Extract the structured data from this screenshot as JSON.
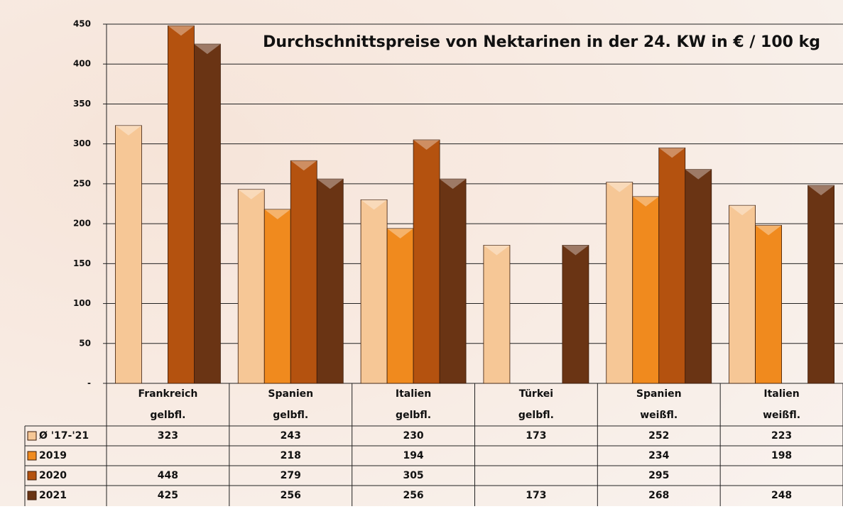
{
  "chart_data": {
    "type": "bar",
    "title": "Durchschnittspreise von Nektarinen in der 24. KW in € / 100 kg",
    "categories": [
      [
        "Frankreich",
        "gelbfl."
      ],
      [
        "Spanien",
        "gelbfl."
      ],
      [
        "Italien",
        "gelbfl."
      ],
      [
        "Türkei",
        "gelbfl."
      ],
      [
        "Spanien",
        "weißfl."
      ],
      [
        "Italien",
        "weißfl."
      ]
    ],
    "series": [
      {
        "name": "Ø '17-'21",
        "color": "#f6c796",
        "values": [
          323,
          243,
          230,
          173,
          252,
          223
        ]
      },
      {
        "name": "2019",
        "color": "#f08a1e",
        "values": [
          null,
          218,
          194,
          null,
          234,
          198
        ]
      },
      {
        "name": "2020",
        "color": "#b4520f",
        "values": [
          448,
          279,
          305,
          null,
          295,
          null
        ]
      },
      {
        "name": "2021",
        "color": "#6a3414",
        "values": [
          425,
          256,
          256,
          173,
          268,
          248
        ]
      }
    ],
    "ylim": [
      0,
      450
    ],
    "yticks": [
      {
        "value": 0,
        "label": "-"
      },
      50,
      100,
      150,
      200,
      250,
      300,
      350,
      400,
      450
    ],
    "grid": true
  }
}
